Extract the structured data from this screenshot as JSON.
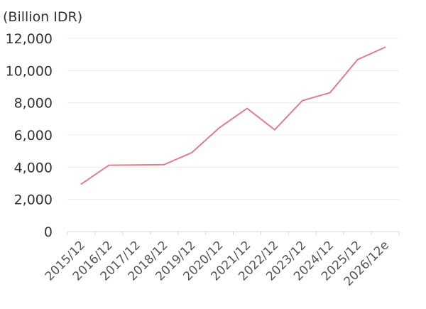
{
  "chart_data": {
    "type": "line",
    "unit_label": "(Billion IDR)",
    "title": "",
    "xlabel": "",
    "ylabel": "",
    "categories": [
      "2015/12",
      "2016/12",
      "2017/12",
      "2018/12",
      "2019/12",
      "2020/12",
      "2021/12",
      "2022/12",
      "2023/12",
      "2024/12",
      "2025/12",
      "2026/12e"
    ],
    "series": [
      {
        "color": "#e07e87",
        "values": [
          2950,
          4120,
          4140,
          4160,
          4900,
          6450,
          7650,
          6320,
          8130,
          8620,
          10680,
          11450
        ]
      }
    ],
    "ylim": [
      0,
      12000
    ],
    "yticks": [
      0,
      2000,
      4000,
      6000,
      8000,
      10000,
      12000
    ],
    "ytick_labels": [
      "0",
      "2,000",
      "4,000",
      "6,000",
      "8,000",
      "10,000",
      "12,000"
    ],
    "grid": true,
    "legend": "none"
  }
}
